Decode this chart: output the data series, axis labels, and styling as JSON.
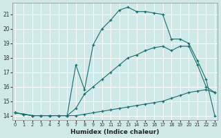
{
  "xlabel": "Humidex (Indice chaleur)",
  "bg_color": "#cfe8e8",
  "grid_color": "#ffffff",
  "line_color": "#1a6b6b",
  "xlim": [
    -0.3,
    23.3
  ],
  "ylim": [
    13.7,
    21.8
  ],
  "yticks": [
    14,
    15,
    16,
    17,
    18,
    19,
    20,
    21
  ],
  "xticks": [
    0,
    1,
    2,
    3,
    4,
    5,
    6,
    7,
    8,
    9,
    10,
    11,
    12,
    13,
    14,
    15,
    16,
    17,
    18,
    19,
    20,
    21,
    22,
    23
  ],
  "line1_x": [
    0,
    1,
    2,
    3,
    4,
    5,
    6,
    7,
    8,
    9,
    10,
    11,
    12,
    13,
    14,
    15,
    16,
    17,
    18,
    19,
    20,
    21,
    22,
    23
  ],
  "line1_y": [
    14.2,
    14.1,
    14.0,
    14.0,
    14.0,
    14.0,
    14.0,
    14.0,
    14.1,
    14.2,
    14.3,
    14.4,
    14.5,
    14.6,
    14.7,
    14.8,
    14.9,
    15.0,
    15.2,
    15.4,
    15.6,
    15.7,
    15.8,
    15.6
  ],
  "line2_x": [
    0,
    1,
    2,
    3,
    4,
    5,
    6,
    7,
    8,
    9,
    10,
    11,
    12,
    13,
    14,
    15,
    16,
    17,
    18,
    19,
    20,
    21,
    22,
    23
  ],
  "line2_y": [
    14.2,
    14.1,
    14.0,
    14.0,
    14.0,
    14.0,
    14.0,
    14.5,
    15.5,
    16.0,
    16.5,
    17.0,
    17.5,
    18.0,
    18.2,
    18.5,
    18.7,
    18.8,
    18.5,
    18.8,
    18.8,
    17.5,
    16.0,
    15.6
  ],
  "line3_x": [
    0,
    1,
    2,
    3,
    4,
    5,
    6,
    7,
    8,
    9,
    10,
    11,
    12,
    13,
    14,
    15,
    16,
    17,
    18,
    19,
    20,
    21,
    22,
    23
  ],
  "line3_y": [
    14.2,
    14.1,
    14.0,
    14.0,
    14.0,
    14.0,
    14.0,
    17.5,
    15.8,
    18.9,
    20.0,
    20.6,
    21.3,
    21.5,
    21.2,
    21.2,
    21.1,
    21.0,
    19.3,
    19.3,
    19.0,
    17.8,
    16.5,
    14.0
  ]
}
